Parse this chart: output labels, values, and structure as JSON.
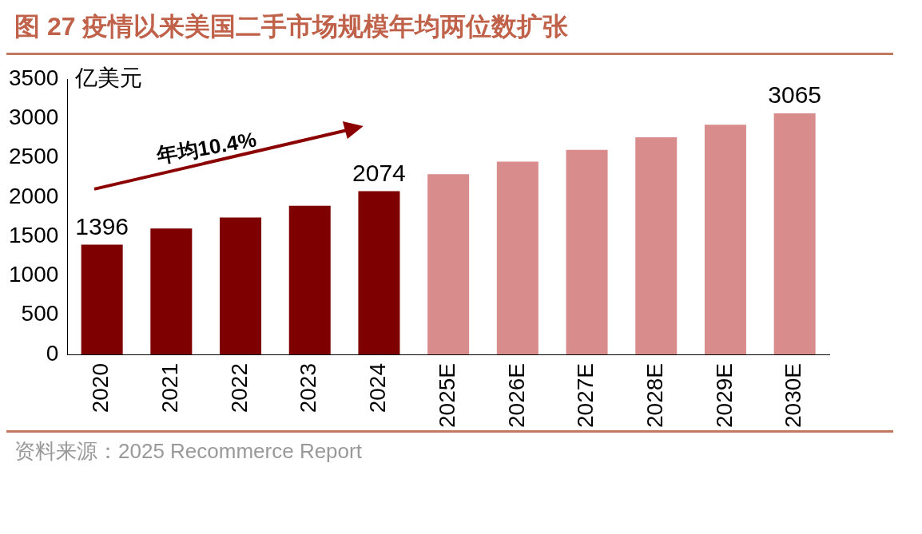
{
  "chart_data": {
    "type": "bar",
    "title": "图 27 疫情以来美国二手市场规模年均两位数扩张",
    "ylabel": "亿美元",
    "categories": [
      "2020",
      "2021",
      "2022",
      "2023",
      "2024",
      "2025E",
      "2026E",
      "2027E",
      "2028E",
      "2029E",
      "2030E"
    ],
    "values": [
      1396,
      1600,
      1740,
      1890,
      2074,
      2290,
      2450,
      2600,
      2760,
      2920,
      3065
    ],
    "colors": [
      "#7f0000",
      "#7f0000",
      "#7f0000",
      "#7f0000",
      "#7f0000",
      "#d98c8c",
      "#d98c8c",
      "#d98c8c",
      "#d98c8c",
      "#d98c8c",
      "#d98c8c"
    ],
    "value_labels": [
      "1396",
      null,
      null,
      null,
      "2074",
      null,
      null,
      null,
      null,
      null,
      "3065"
    ],
    "ylim": [
      0,
      3500
    ],
    "yticks": [
      0,
      500,
      1000,
      1500,
      2000,
      2500,
      3000,
      3500
    ],
    "grid": false,
    "legend": false,
    "annotations": [
      "年均10.4%",
      "资料来源：2025 Recommerce Report"
    ]
  }
}
